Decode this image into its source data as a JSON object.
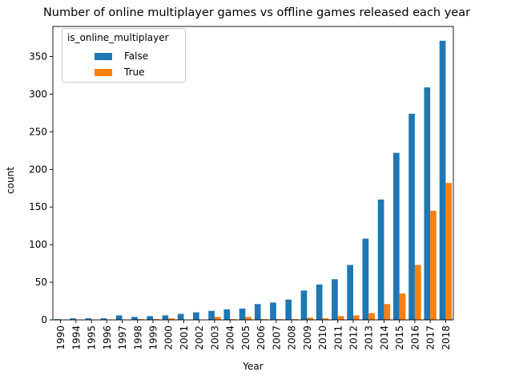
{
  "chart_data": {
    "type": "bar",
    "title": "Number of online multiplayer games vs offline games released each year",
    "xlabel": "Year",
    "ylabel": "count",
    "ylim": [
      0,
      390
    ],
    "yticks": [
      0,
      50,
      100,
      150,
      200,
      250,
      300,
      350
    ],
    "grid": false,
    "legend_title": "is_online_multiplayer",
    "legend_position": "top-left",
    "categories": [
      "1990",
      "1994",
      "1995",
      "1996",
      "1997",
      "1998",
      "1999",
      "2000",
      "2001",
      "2002",
      "2003",
      "2004",
      "2005",
      "2006",
      "2007",
      "2008",
      "2009",
      "2010",
      "2011",
      "2012",
      "2013",
      "2014",
      "2015",
      "2016",
      "2017",
      "2018"
    ],
    "series": [
      {
        "name": "False",
        "color": "#1f77b4",
        "values": [
          1,
          2,
          2,
          2,
          6,
          4,
          5,
          6,
          8,
          10,
          12,
          14,
          15,
          21,
          23,
          27,
          39,
          47,
          54,
          73,
          108,
          160,
          222,
          274,
          309,
          371
        ]
      },
      {
        "name": "True",
        "color": "#ff7f0e",
        "values": [
          0,
          0,
          0,
          0,
          0,
          1,
          1,
          2,
          0,
          0,
          4,
          1,
          4,
          1,
          1,
          1,
          3,
          2,
          5,
          6,
          9,
          21,
          35,
          73,
          145,
          182
        ]
      }
    ]
  }
}
